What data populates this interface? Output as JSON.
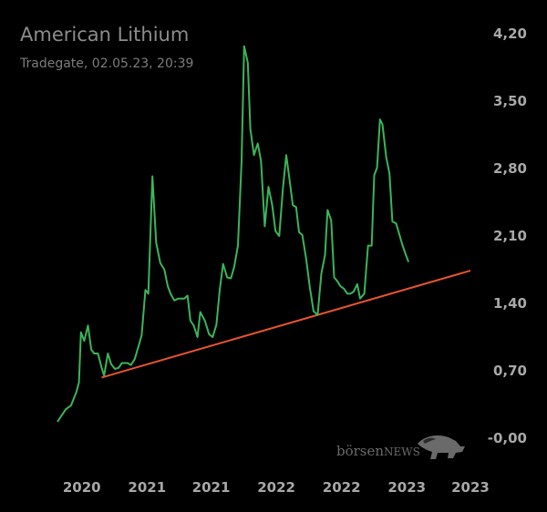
{
  "header": {
    "title": "American Lithium",
    "subtitle": "Tradegate, 02.05.23, 20:39"
  },
  "watermark": {
    "text_prefix": "börsen",
    "text_suffix": "NEWS",
    "icon": "bull-icon"
  },
  "colors": {
    "background": "#000000",
    "price_line": "#3bb55a",
    "trend_line": "#e8542e"
  },
  "chart_data": {
    "type": "line",
    "title": "American Lithium",
    "subtitle": "Tradegate, 02.05.23, 20:39",
    "xlabel": "",
    "ylabel": "",
    "y_axis_position": "right",
    "ylim": [
      -0.05,
      4.4
    ],
    "xlim": [
      0,
      1
    ],
    "y_ticks": [
      {
        "value": 4.2,
        "label": "4,20"
      },
      {
        "value": 3.5,
        "label": "3,50"
      },
      {
        "value": 2.8,
        "label": "2,80"
      },
      {
        "value": 2.1,
        "label": "2,10"
      },
      {
        "value": 1.4,
        "label": "1,40"
      },
      {
        "value": 0.7,
        "label": "0,70"
      },
      {
        "value": 0.0,
        "label": "-0,00"
      }
    ],
    "x_ticks": [
      {
        "value": 0.059,
        "label": "2020"
      },
      {
        "value": 0.217,
        "label": "2021"
      },
      {
        "value": 0.372,
        "label": "2021"
      },
      {
        "value": 0.53,
        "label": "2022"
      },
      {
        "value": 0.688,
        "label": "2022"
      },
      {
        "value": 0.846,
        "label": "2023"
      },
      {
        "value": 1.0,
        "label": "2023"
      }
    ],
    "grid": false,
    "series": [
      {
        "color": "#3bb55a",
        "points": [
          [
            0,
            0.17
          ],
          [
            0.02,
            0.3
          ],
          [
            0.033,
            0.34
          ],
          [
            0.046,
            0.48
          ],
          [
            0.052,
            0.58
          ],
          [
            0.057,
            1.1
          ],
          [
            0.065,
            1.01
          ],
          [
            0.074,
            1.17
          ],
          [
            0.082,
            0.92
          ],
          [
            0.089,
            0.88
          ],
          [
            0.098,
            0.88
          ],
          [
            0.107,
            0.73
          ],
          [
            0.113,
            0.65
          ],
          [
            0.122,
            0.88
          ],
          [
            0.13,
            0.77
          ],
          [
            0.139,
            0.72
          ],
          [
            0.148,
            0.73
          ],
          [
            0.156,
            0.78
          ],
          [
            0.17,
            0.78
          ],
          [
            0.178,
            0.76
          ],
          [
            0.187,
            0.82
          ],
          [
            0.196,
            0.95
          ],
          [
            0.204,
            1.07
          ],
          [
            0.213,
            1.54
          ],
          [
            0.22,
            1.5
          ],
          [
            0.23,
            2.72
          ],
          [
            0.239,
            2.03
          ],
          [
            0.249,
            1.82
          ],
          [
            0.259,
            1.75
          ],
          [
            0.267,
            1.58
          ],
          [
            0.274,
            1.5
          ],
          [
            0.283,
            1.43
          ],
          [
            0.293,
            1.45
          ],
          [
            0.307,
            1.45
          ],
          [
            0.315,
            1.48
          ],
          [
            0.322,
            1.22
          ],
          [
            0.33,
            1.17
          ],
          [
            0.339,
            1.05
          ],
          [
            0.346,
            1.31
          ],
          [
            0.357,
            1.22
          ],
          [
            0.367,
            1.08
          ],
          [
            0.376,
            1.05
          ],
          [
            0.385,
            1.18
          ],
          [
            0.393,
            1.54
          ],
          [
            0.401,
            1.81
          ],
          [
            0.411,
            1.67
          ],
          [
            0.42,
            1.66
          ],
          [
            0.428,
            1.78
          ],
          [
            0.437,
            2.0
          ],
          [
            0.446,
            2.88
          ],
          [
            0.452,
            4.07
          ],
          [
            0.461,
            3.9
          ],
          [
            0.467,
            3.21
          ],
          [
            0.476,
            2.94
          ],
          [
            0.485,
            3.06
          ],
          [
            0.493,
            2.88
          ],
          [
            0.502,
            2.2
          ],
          [
            0.511,
            2.61
          ],
          [
            0.52,
            2.42
          ],
          [
            0.528,
            2.15
          ],
          [
            0.537,
            2.1
          ],
          [
            0.546,
            2.59
          ],
          [
            0.554,
            2.94
          ],
          [
            0.561,
            2.72
          ],
          [
            0.57,
            2.42
          ],
          [
            0.578,
            2.4
          ],
          [
            0.585,
            2.14
          ],
          [
            0.593,
            2.11
          ],
          [
            0.602,
            1.87
          ],
          [
            0.611,
            1.57
          ],
          [
            0.62,
            1.32
          ],
          [
            0.63,
            1.28
          ],
          [
            0.639,
            1.71
          ],
          [
            0.648,
            1.9
          ],
          [
            0.654,
            2.37
          ],
          [
            0.663,
            2.26
          ],
          [
            0.67,
            1.67
          ],
          [
            0.678,
            1.63
          ],
          [
            0.685,
            1.58
          ],
          [
            0.694,
            1.55
          ],
          [
            0.702,
            1.5
          ],
          [
            0.709,
            1.5
          ],
          [
            0.717,
            1.52
          ],
          [
            0.726,
            1.6
          ],
          [
            0.733,
            1.45
          ],
          [
            0.743,
            1.5
          ],
          [
            0.752,
            2.0
          ],
          [
            0.761,
            2.0
          ],
          [
            0.767,
            2.73
          ],
          [
            0.774,
            2.81
          ],
          [
            0.781,
            3.31
          ],
          [
            0.787,
            3.26
          ],
          [
            0.796,
            2.92
          ],
          [
            0.804,
            2.75
          ],
          [
            0.811,
            2.25
          ],
          [
            0.82,
            2.23
          ],
          [
            0.827,
            2.13
          ],
          [
            0.835,
            2.01
          ],
          [
            0.843,
            1.91
          ],
          [
            0.85,
            1.83
          ]
        ]
      }
    ],
    "trend_line": {
      "color": "#e8542e",
      "from": [
        0.107,
        0.63
      ],
      "to": [
        1.0,
        1.74
      ]
    }
  }
}
